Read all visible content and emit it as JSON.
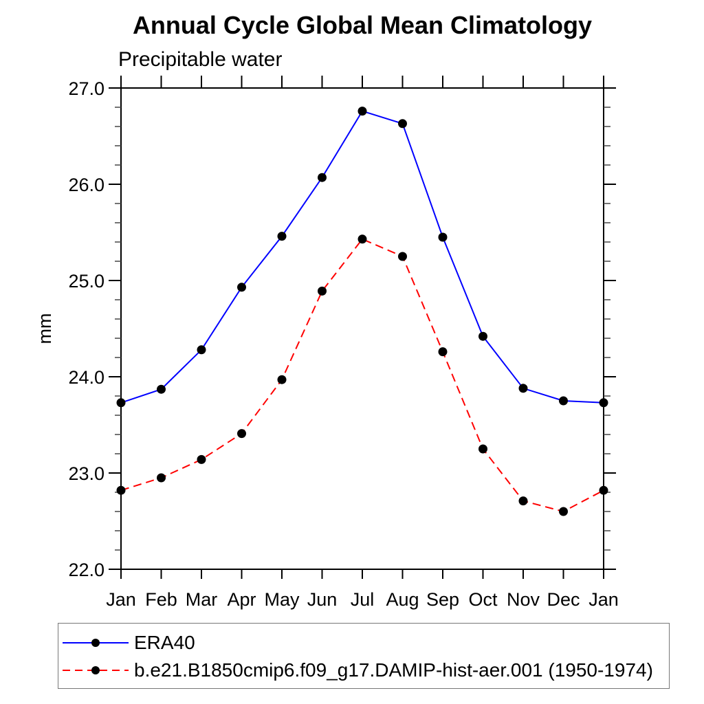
{
  "page": {
    "background": "#ffffff",
    "axis_color": "#000000",
    "minor_tick_color": "#444444",
    "legend_border_color": "#777777"
  },
  "chart_data": {
    "type": "line",
    "title": "Annual Cycle Global Mean Climatology",
    "subtitle": "Precipitable water",
    "xlabel": "",
    "ylabel": "mm",
    "categories": [
      "Jan",
      "Feb",
      "Mar",
      "Apr",
      "May",
      "Jun",
      "Jul",
      "Aug",
      "Sep",
      "Oct",
      "Nov",
      "Dec",
      "Jan"
    ],
    "ylim": [
      22.0,
      27.0
    ],
    "y_major_step": 1.0,
    "y_minor_step": 0.2,
    "y_tick_labels": [
      "22.0",
      "23.0",
      "24.0",
      "25.0",
      "26.0",
      "27.0"
    ],
    "grid": false,
    "legend_position": "bottom-left-box",
    "series": [
      {
        "name": "ERA40",
        "color": "#0000ff",
        "line_style": "solid",
        "marker": "filled-circle",
        "marker_color": "#000000",
        "values": [
          23.73,
          23.87,
          24.28,
          24.93,
          25.46,
          26.07,
          26.76,
          26.63,
          25.45,
          24.42,
          23.88,
          23.75,
          23.73
        ]
      },
      {
        "name": "b.e21.B1850cmip6.f09_g17.DAMIP-hist-aer.001 (1950-1974)",
        "color": "#ff0000",
        "line_style": "dashed",
        "marker": "filled-circle",
        "marker_color": "#000000",
        "values": [
          22.82,
          22.95,
          23.14,
          23.41,
          23.97,
          24.89,
          25.43,
          25.25,
          24.26,
          23.25,
          22.71,
          22.6,
          22.82
        ]
      }
    ]
  }
}
